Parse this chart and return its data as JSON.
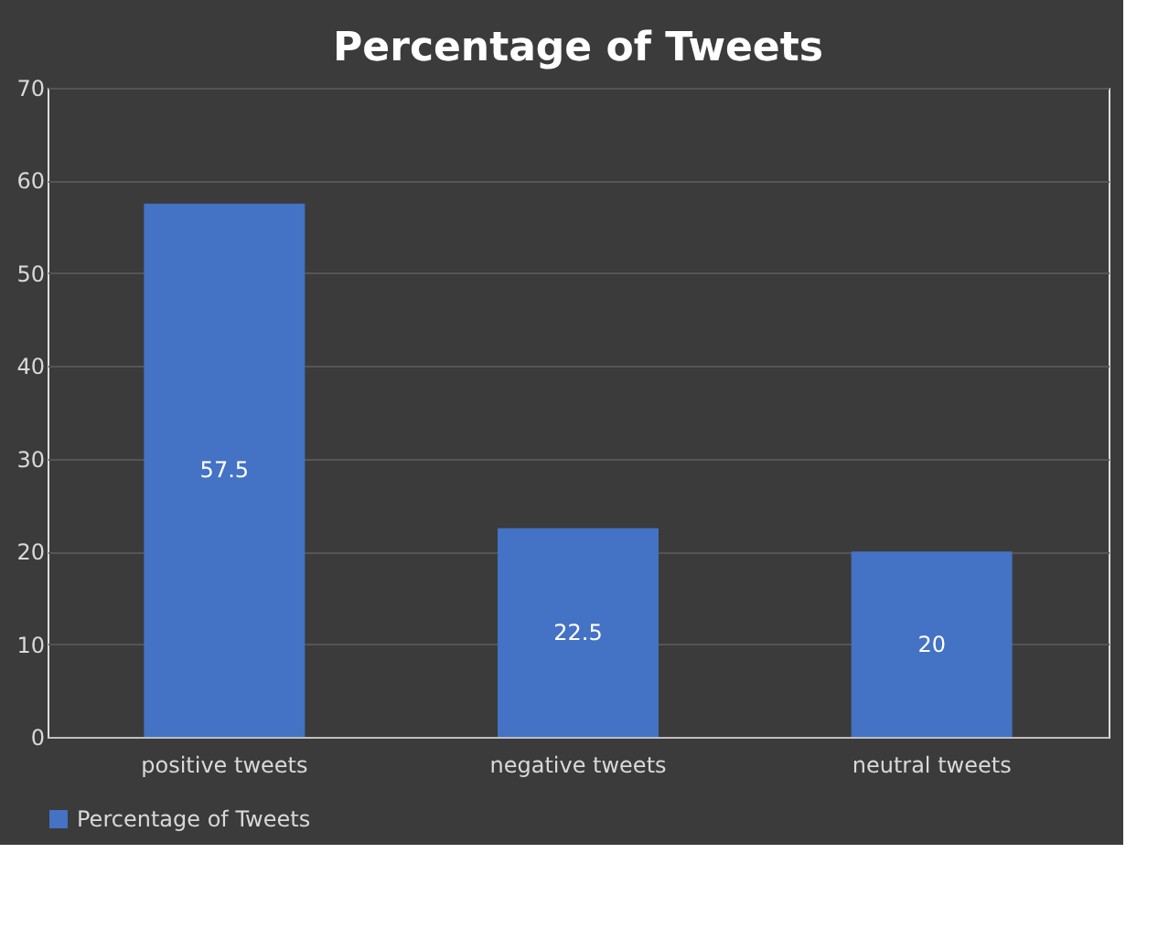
{
  "chart_data": {
    "type": "bar",
    "title": "Percentage of Tweets",
    "categories": [
      "positive tweets",
      "negative tweets",
      "neutral tweets"
    ],
    "series": [
      {
        "name": "Percentage of Tweets",
        "color": "#4472c4",
        "values": [
          57.5,
          22.5,
          20
        ]
      }
    ],
    "ylim": [
      0,
      70
    ],
    "yticks": [
      0,
      10,
      20,
      30,
      40,
      50,
      60,
      70
    ],
    "grid": "y",
    "legend": "bottom",
    "data_labels": true
  }
}
